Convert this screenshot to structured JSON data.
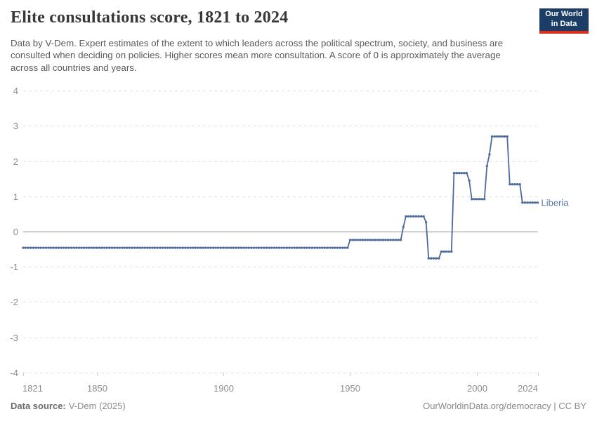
{
  "header": {
    "title": "Elite consultations score, 1821 to 2024",
    "subtitle": "Data by V-Dem. Expert estimates of the extent to which leaders across the political spectrum, society, and business are consulted when deciding on policies. Higher scores mean more consultation. A score of 0 is approximately the average across all countries and years.",
    "logo": {
      "line1": "Our World",
      "line2": "in Data",
      "bg_color": "#1b3d66",
      "bar_color": "#dc2d1c"
    }
  },
  "chart_data": {
    "type": "line",
    "title": "Elite consultations score, 1821 to 2024",
    "entity": "Liberia",
    "line_color": "#4c6a9c",
    "xlabel": "",
    "ylabel": "",
    "xlim": [
      1821,
      2024
    ],
    "ylim": [
      -4,
      4
    ],
    "x_ticks": [
      1821,
      1850,
      1900,
      1950,
      2000,
      2024
    ],
    "y_ticks": [
      -4,
      -3,
      -2,
      -1,
      0,
      1,
      2,
      3,
      4
    ],
    "grid": "horizontal dashed gridlines, solid zero line",
    "legend_position": "end-of-line label",
    "marker": "point-per-year",
    "series": [
      {
        "name": "Liberia",
        "runs": [
          {
            "from": 1821,
            "to": 1949,
            "value": -0.46
          },
          {
            "from": 1950,
            "to": 1970,
            "value": -0.24
          },
          {
            "from": 1971,
            "to": 1971,
            "value": 0.13
          },
          {
            "from": 1972,
            "to": 1979,
            "value": 0.43
          },
          {
            "from": 1980,
            "to": 1980,
            "value": 0.26
          },
          {
            "from": 1981,
            "to": 1985,
            "value": -0.76
          },
          {
            "from": 1986,
            "to": 1990,
            "value": -0.57
          },
          {
            "from": 1991,
            "to": 1996,
            "value": 1.66
          },
          {
            "from": 1997,
            "to": 1997,
            "value": 1.45
          },
          {
            "from": 1998,
            "to": 2003,
            "value": 0.92
          },
          {
            "from": 2004,
            "to": 2004,
            "value": 1.86
          },
          {
            "from": 2005,
            "to": 2005,
            "value": 2.19
          },
          {
            "from": 2006,
            "to": 2012,
            "value": 2.7
          },
          {
            "from": 2013,
            "to": 2017,
            "value": 1.34
          },
          {
            "from": 2018,
            "to": 2024,
            "value": 0.82
          }
        ]
      }
    ],
    "colors": {
      "gridline": "#e0e0e0",
      "zero_line": "#a3a3a3",
      "tick_label": "#8c8c8c",
      "axis_tick": "#cfcfcf"
    }
  },
  "footer": {
    "source_label": "Data source:",
    "source_value": "V-Dem (2025)",
    "credit": "OurWorldinData.org/democracy | CC BY"
  }
}
